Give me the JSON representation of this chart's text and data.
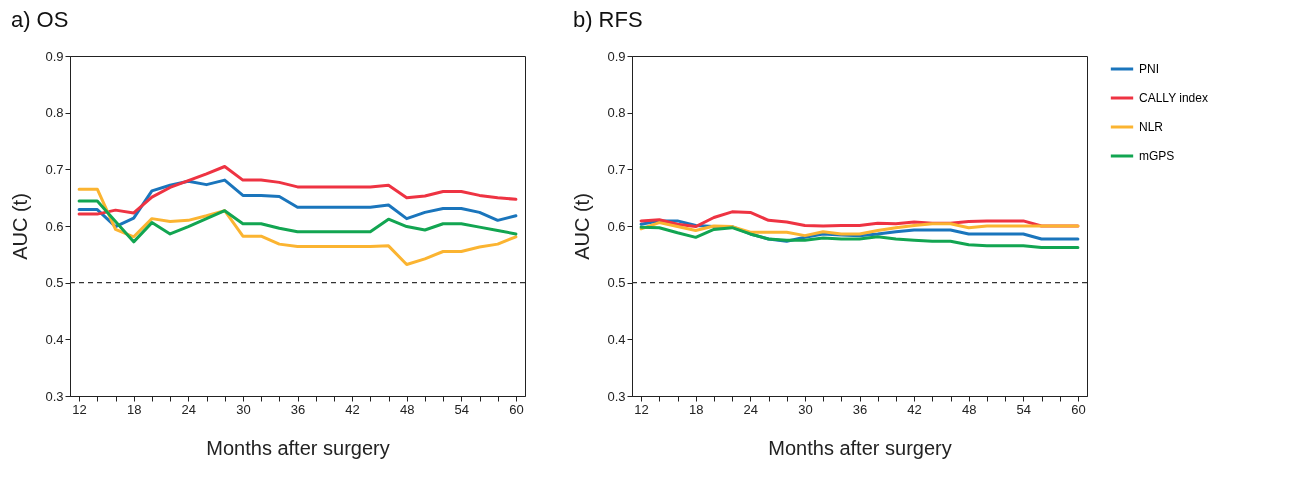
{
  "chart_data": [
    {
      "type": "line",
      "title": "a) OS",
      "xlabel": "Months after surgery",
      "ylabel": "AUC (t)",
      "x": [
        12,
        14,
        16,
        18,
        20,
        22,
        24,
        26,
        28,
        30,
        32,
        34,
        36,
        38,
        40,
        42,
        44,
        46,
        48,
        50,
        52,
        54,
        56,
        58,
        60
      ],
      "series": [
        {
          "name": "PNI",
          "color": "#1a75bc",
          "values": [
            0.629,
            0.629,
            0.599,
            0.614,
            0.662,
            0.672,
            0.679,
            0.673,
            0.681,
            0.654,
            0.654,
            0.652,
            0.633,
            0.633,
            0.633,
            0.633,
            0.633,
            0.637,
            0.613,
            0.624,
            0.631,
            0.631,
            0.624,
            0.61,
            0.618
          ]
        },
        {
          "name": "CALLY index",
          "color": "#ee3342",
          "values": [
            0.621,
            0.621,
            0.628,
            0.623,
            0.651,
            0.668,
            0.68,
            0.692,
            0.705,
            0.681,
            0.681,
            0.677,
            0.669,
            0.669,
            0.669,
            0.669,
            0.669,
            0.672,
            0.65,
            0.653,
            0.661,
            0.661,
            0.654,
            0.65,
            0.647
          ]
        },
        {
          "name": "NLR",
          "color": "#fbb431",
          "values": [
            0.665,
            0.665,
            0.594,
            0.581,
            0.613,
            0.608,
            0.61,
            0.618,
            0.627,
            0.582,
            0.582,
            0.568,
            0.564,
            0.564,
            0.564,
            0.564,
            0.564,
            0.565,
            0.532,
            0.542,
            0.555,
            0.555,
            0.563,
            0.568,
            0.581
          ]
        },
        {
          "name": "mGPS",
          "color": "#12a551",
          "values": [
            0.644,
            0.644,
            0.608,
            0.572,
            0.606,
            0.586,
            0.599,
            0.613,
            0.627,
            0.604,
            0.604,
            0.596,
            0.59,
            0.59,
            0.59,
            0.59,
            0.59,
            0.612,
            0.599,
            0.593,
            0.604,
            0.604,
            0.598,
            0.592,
            0.586
          ]
        }
      ],
      "xlim": [
        11,
        61
      ],
      "xticks": [
        12,
        {
          "value": 14,
          "label": null
        },
        {
          "value": 16,
          "label": null
        },
        18,
        {
          "value": 20,
          "label": null
        },
        {
          "value": 22,
          "label": null
        },
        24,
        {
          "value": 26,
          "label": null
        },
        {
          "value": 28,
          "label": null
        },
        30,
        {
          "value": 32,
          "label": null
        },
        {
          "value": 34,
          "label": null
        },
        36,
        {
          "value": 38,
          "label": null
        },
        {
          "value": 40,
          "label": null
        },
        42,
        {
          "value": 44,
          "label": null
        },
        {
          "value": 46,
          "label": null
        },
        48,
        {
          "value": 50,
          "label": null
        },
        {
          "value": 52,
          "label": null
        },
        54,
        {
          "value": 56,
          "label": null
        },
        {
          "value": 58,
          "label": null
        },
        60
      ],
      "ylim": [
        0.3,
        0.9
      ],
      "yticks": [
        0.3,
        0.4,
        0.5,
        0.6,
        0.7,
        0.8,
        0.9
      ],
      "ref_lines": [
        {
          "axis": "y",
          "value": 0.5,
          "line_style": "dashed",
          "color": "#333333"
        }
      ],
      "grid": false,
      "legend": "right"
    },
    {
      "type": "line",
      "title": "b) RFS",
      "xlabel": "Months after surgery",
      "ylabel": "AUC (t)",
      "x": [
        12,
        14,
        16,
        18,
        20,
        22,
        24,
        26,
        28,
        30,
        32,
        34,
        36,
        38,
        40,
        42,
        44,
        46,
        48,
        50,
        52,
        54,
        56,
        58,
        60
      ],
      "series": [
        {
          "name": "PNI",
          "color": "#1a75bc",
          "values": [
            0.603,
            0.609,
            0.609,
            0.601,
            0.599,
            0.599,
            0.586,
            0.577,
            0.573,
            0.58,
            0.586,
            0.584,
            0.583,
            0.586,
            0.59,
            0.593,
            0.593,
            0.593,
            0.586,
            0.586,
            0.586,
            0.586,
            0.577,
            0.577,
            0.577
          ]
        },
        {
          "name": "CALLY index",
          "color": "#ee3342",
          "values": [
            0.609,
            0.611,
            0.603,
            0.599,
            0.615,
            0.625,
            0.624,
            0.61,
            0.607,
            0.601,
            0.6,
            0.601,
            0.601,
            0.605,
            0.604,
            0.607,
            0.605,
            0.605,
            0.608,
            0.609,
            0.609,
            0.609,
            0.6,
            0.6,
            0.6
          ]
        },
        {
          "name": "NLR",
          "color": "#fbb431",
          "values": [
            0.595,
            0.606,
            0.599,
            0.592,
            0.6,
            0.599,
            0.589,
            0.589,
            0.589,
            0.583,
            0.59,
            0.586,
            0.586,
            0.592,
            0.597,
            0.601,
            0.604,
            0.604,
            0.597,
            0.6,
            0.6,
            0.6,
            0.6,
            0.6,
            0.6
          ]
        },
        {
          "name": "mGPS",
          "color": "#12a551",
          "values": [
            0.598,
            0.597,
            0.588,
            0.58,
            0.594,
            0.597,
            0.586,
            0.577,
            0.575,
            0.575,
            0.579,
            0.577,
            0.577,
            0.581,
            0.577,
            0.575,
            0.573,
            0.573,
            0.567,
            0.565,
            0.565,
            0.565,
            0.562,
            0.562,
            0.562
          ]
        }
      ],
      "xlim": [
        11,
        61
      ],
      "xticks": [
        12,
        {
          "value": 14,
          "label": null
        },
        {
          "value": 16,
          "label": null
        },
        18,
        {
          "value": 20,
          "label": null
        },
        {
          "value": 22,
          "label": null
        },
        24,
        {
          "value": 26,
          "label": null
        },
        {
          "value": 28,
          "label": null
        },
        30,
        {
          "value": 32,
          "label": null
        },
        {
          "value": 34,
          "label": null
        },
        36,
        {
          "value": 38,
          "label": null
        },
        {
          "value": 40,
          "label": null
        },
        42,
        {
          "value": 44,
          "label": null
        },
        {
          "value": 46,
          "label": null
        },
        48,
        {
          "value": 50,
          "label": null
        },
        {
          "value": 52,
          "label": null
        },
        54,
        {
          "value": 56,
          "label": null
        },
        {
          "value": 58,
          "label": null
        },
        60
      ],
      "ylim": [
        0.3,
        0.9
      ],
      "yticks": [
        0.3,
        0.4,
        0.5,
        0.6,
        0.7,
        0.8,
        0.9
      ],
      "ref_lines": [
        {
          "axis": "y",
          "value": 0.5,
          "line_style": "dashed",
          "color": "#333333"
        }
      ],
      "grid": false,
      "legend": "right"
    }
  ]
}
